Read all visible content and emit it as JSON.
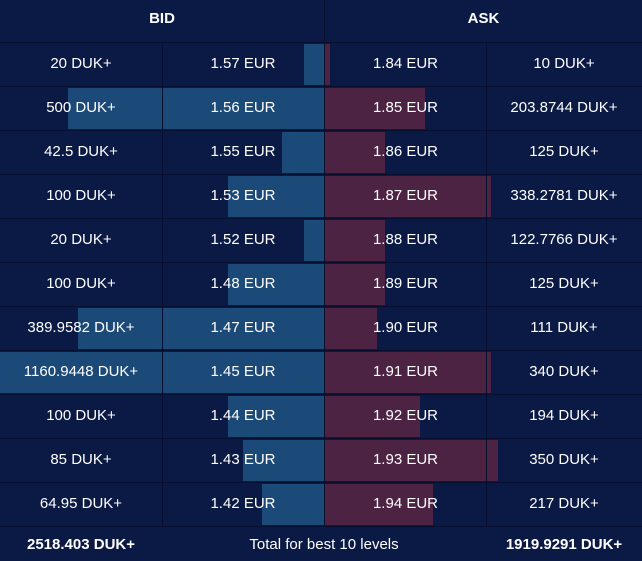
{
  "header": {
    "bid_title": "BID",
    "ask_title": "ASK"
  },
  "colors": {
    "background": "#0b1a45",
    "bid_bar": "#1c4a78",
    "ask_bar": "#4d2344",
    "grid_line": "#06102e",
    "text": "#ffffff"
  },
  "rows": [
    {
      "bid_size": "20 DUK+",
      "bid_price": "1.57 EUR",
      "ask_price": "1.84 EUR",
      "ask_size": "10 DUK+",
      "bid_depth": 0.0625,
      "ask_depth": 0.016
    },
    {
      "bid_size": "500 DUK+",
      "bid_price": "1.56 EUR",
      "ask_price": "1.85 EUR",
      "ask_size": "203.8744 DUK+",
      "bid_depth": 0.79,
      "ask_depth": 0.315
    },
    {
      "bid_size": "42.5 DUK+",
      "bid_price": "1.55 EUR",
      "ask_price": "1.86 EUR",
      "ask_size": "125 DUK+",
      "bid_depth": 0.13,
      "ask_depth": 0.19
    },
    {
      "bid_size": "100 DUK+",
      "bid_price": "1.53 EUR",
      "ask_price": "1.87 EUR",
      "ask_size": "338.2781 DUK+",
      "bid_depth": 0.295,
      "ask_depth": 0.525
    },
    {
      "bid_size": "20 DUK+",
      "bid_price": "1.52 EUR",
      "ask_price": "1.88 EUR",
      "ask_size": "122.7766 DUK+",
      "bid_depth": 0.0625,
      "ask_depth": 0.19
    },
    {
      "bid_size": "100 DUK+",
      "bid_price": "1.48 EUR",
      "ask_price": "1.89 EUR",
      "ask_size": "125 DUK+",
      "bid_depth": 0.295,
      "ask_depth": 0.19
    },
    {
      "bid_size": "389.9582 DUK+",
      "bid_price": "1.47 EUR",
      "ask_price": "1.90 EUR",
      "ask_size": "111 DUK+",
      "bid_depth": 0.76,
      "ask_depth": 0.165
    },
    {
      "bid_size": "1160.9448 DUK+",
      "bid_price": "1.45 EUR",
      "ask_price": "1.91 EUR",
      "ask_size": "340 DUK+",
      "bid_depth": 1.0,
      "ask_depth": 0.525
    },
    {
      "bid_size": "100 DUK+",
      "bid_price": "1.44 EUR",
      "ask_price": "1.92 EUR",
      "ask_size": "194 DUK+",
      "bid_depth": 0.295,
      "ask_depth": 0.3
    },
    {
      "bid_size": "85 DUK+",
      "bid_price": "1.43 EUR",
      "ask_price": "1.93 EUR",
      "ask_size": "350 DUK+",
      "bid_depth": 0.25,
      "ask_depth": 0.545
    },
    {
      "bid_size": "64.95 DUK+",
      "bid_price": "1.42 EUR",
      "ask_price": "1.94 EUR",
      "ask_size": "217 DUK+",
      "bid_depth": 0.19,
      "ask_depth": 0.34
    }
  ],
  "footer": {
    "bid_total": "2518.403 DUK+",
    "label": "Total for best 10 levels",
    "ask_total": "1919.9291 DUK+"
  }
}
